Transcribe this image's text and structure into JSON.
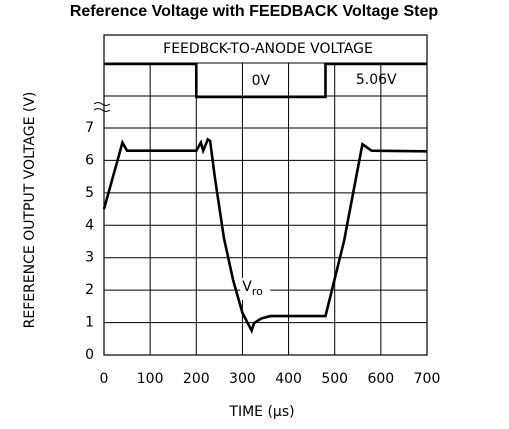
{
  "chart_data": {
    "type": "line",
    "title": "Reference Voltage with FEEDBACK Voltage Step",
    "xlabel": "TIME (μs)",
    "ylabel": "REFERENCE OUTPUT VOLTAGE (V)",
    "header": "FEEDBCK-TO-ANODE VOLTAGE",
    "xlim": [
      0,
      700
    ],
    "xticks": [
      0,
      100,
      200,
      300,
      400,
      500,
      600,
      700
    ],
    "ylim": [
      0,
      7
    ],
    "yticks": [
      0,
      1,
      2,
      3,
      4,
      5,
      6,
      7
    ],
    "y2lim": [
      -2,
      9.5
    ],
    "grid": true,
    "series": [
      {
        "name": "Vro",
        "color": "#000000",
        "x": [
          0,
          40,
          50,
          200,
          210,
          215,
          225,
          230,
          240,
          260,
          280,
          300,
          320,
          325,
          340,
          360,
          480,
          520,
          560,
          580,
          700
        ],
        "values": [
          4.5,
          6.55,
          6.3,
          6.3,
          6.55,
          6.3,
          6.65,
          6.6,
          5.5,
          3.6,
          2.3,
          1.3,
          0.75,
          0.98,
          1.12,
          1.2,
          1.2,
          3.5,
          6.5,
          6.3,
          6.28
        ]
      },
      {
        "name": "FEEDBACK",
        "color": "#000000",
        "axis": "y2",
        "x": [
          0,
          200,
          200,
          480,
          480,
          700
        ],
        "values": [
          5.06,
          5.06,
          0,
          0,
          5.06,
          5.06
        ],
        "value_labels": [
          null,
          null,
          "0V",
          null,
          "5.06V",
          null
        ]
      }
    ]
  }
}
